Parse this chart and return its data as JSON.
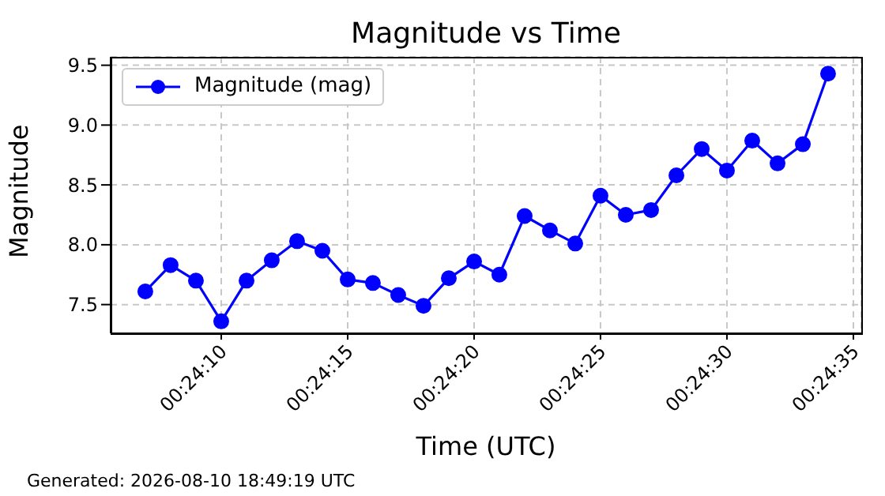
{
  "chart_data": {
    "type": "line",
    "title": "Magnitude vs Time",
    "xlabel": "Time (UTC)",
    "ylabel": "Magnitude",
    "annotations": [
      "Generated: 2026-08-10 18:49:19 UTC"
    ],
    "x": [
      0.401944,
      0.402222,
      0.4025,
      0.402778,
      0.403056,
      0.403333,
      0.403611,
      0.403889,
      0.404167,
      0.404444,
      0.404722,
      0.405,
      0.405278,
      0.405556,
      0.405833,
      0.406111,
      0.406389,
      0.406667,
      0.406944,
      0.407222,
      0.4075,
      0.407778,
      0.408056,
      0.408333,
      0.408611,
      0.408889,
      0.409167,
      0.409444
    ],
    "series": [
      {
        "name": "Magnitude (mag)",
        "color": "#0000ff",
        "values": [
          7.61,
          7.83,
          7.7,
          7.36,
          7.7,
          7.87,
          8.03,
          7.95,
          7.71,
          7.68,
          7.58,
          7.49,
          7.72,
          7.86,
          7.75,
          8.24,
          8.12,
          8.01,
          8.41,
          8.25,
          8.29,
          8.58,
          8.8,
          8.62,
          8.87,
          8.68,
          8.84,
          9.43
        ]
      }
    ],
    "xlim": [
      0.401563,
      0.409809
    ],
    "xticks": [
      {
        "value": 0.402778,
        "label": "00:24:10"
      },
      {
        "value": 0.404167,
        "label": "00:24:15"
      },
      {
        "value": 0.405556,
        "label": "00:24:20"
      },
      {
        "value": 0.406944,
        "label": "00:24:25"
      },
      {
        "value": 0.408333,
        "label": "00:24:30"
      },
      {
        "value": 0.409722,
        "label": "00:24:35"
      }
    ],
    "ylim": [
      7.26,
      9.57
    ],
    "yticks": [
      7.5,
      {
        "value": 8,
        "label": "8.0"
      },
      8.5,
      {
        "value": 9,
        "label": "9.0"
      },
      9.5
    ],
    "grid": true,
    "legend": "top left",
    "marker": "circle",
    "line_style": "solid"
  }
}
